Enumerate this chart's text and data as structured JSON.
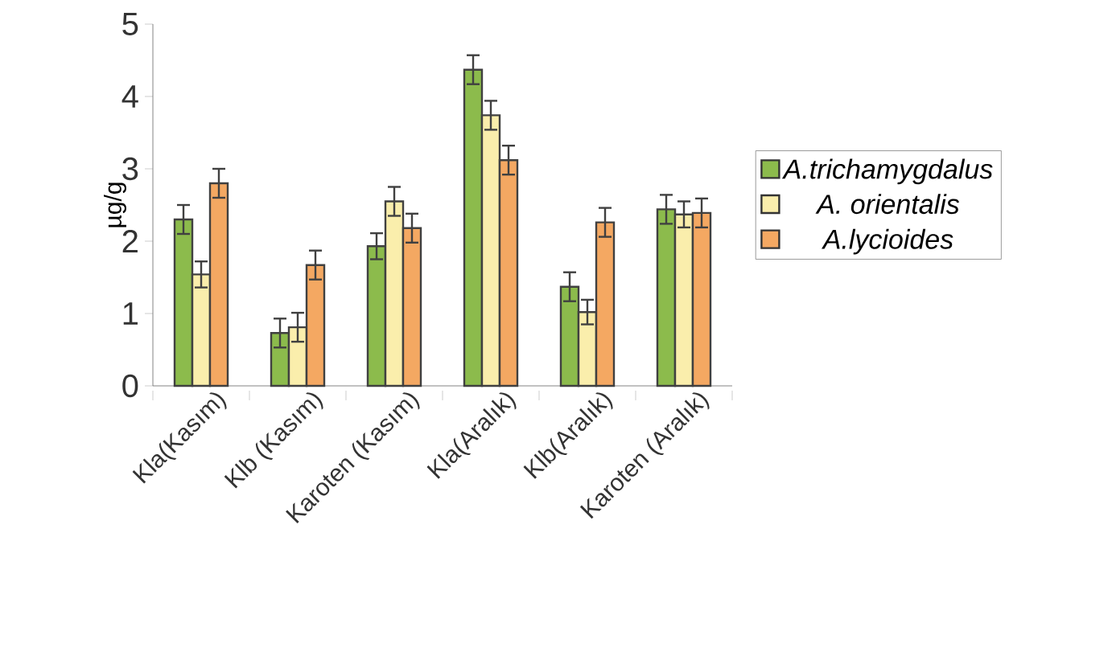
{
  "chart_data": {
    "type": "bar",
    "ylabel": "µg/g",
    "categories": [
      "Kla(Kasım)",
      "Klb (Kasım)",
      "Karoten (Kasım)",
      "Kla(Aralık)",
      "Klb(Aralık)",
      "Karoten (Aralık)"
    ],
    "series": [
      {
        "name": "A.trichamygdalus",
        "color": "#8cbb4c",
        "values": [
          2.3,
          0.73,
          1.93,
          4.37,
          1.37,
          2.44
        ],
        "errors": [
          0.2,
          0.2,
          0.18,
          0.2,
          0.2,
          0.2
        ]
      },
      {
        "name": "A. orientalis",
        "color": "#faeeac",
        "values": [
          1.54,
          0.81,
          2.55,
          3.74,
          1.02,
          2.37
        ],
        "errors": [
          0.18,
          0.2,
          0.2,
          0.2,
          0.17,
          0.18
        ]
      },
      {
        "name": "A.lycioides",
        "color": "#f4a862",
        "values": [
          2.8,
          1.67,
          2.18,
          3.12,
          2.26,
          2.39
        ],
        "errors": [
          0.2,
          0.2,
          0.2,
          0.2,
          0.2,
          0.2
        ]
      }
    ],
    "ylim": [
      0,
      5
    ],
    "yticks": [
      0,
      1,
      2,
      3,
      4,
      5
    ],
    "grid": false,
    "legend": "right"
  }
}
